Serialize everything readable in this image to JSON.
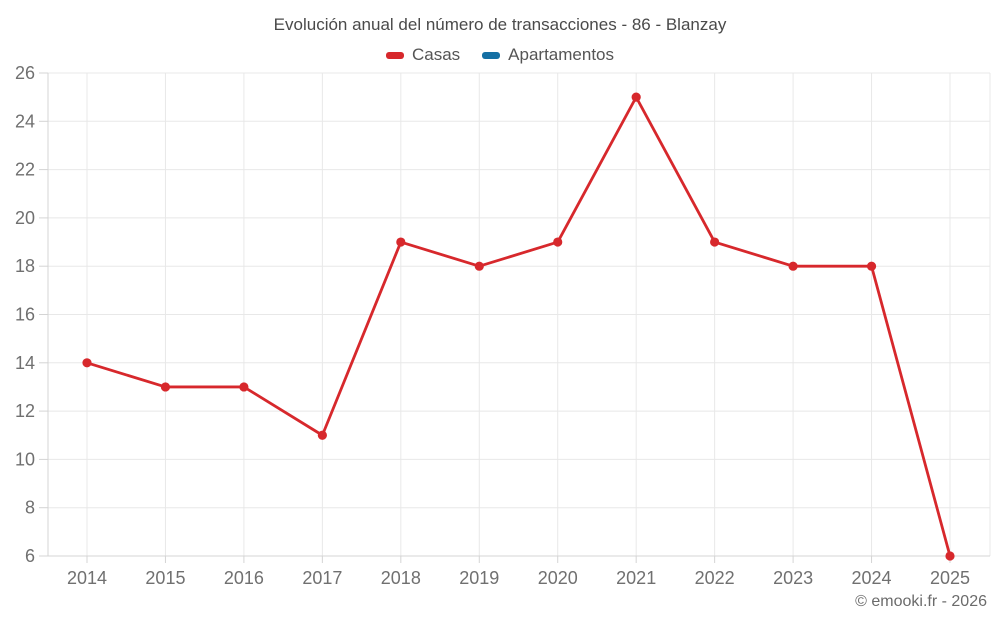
{
  "page": {
    "footer_credit": "© emooki.fr - 2026"
  },
  "chart_data": {
    "type": "line",
    "title": "Evolución anual del número de transacciones - 86 - Blanzay",
    "categories": [
      "2014",
      "2015",
      "2016",
      "2017",
      "2018",
      "2019",
      "2020",
      "2021",
      "2022",
      "2023",
      "2024",
      "2025"
    ],
    "series": [
      {
        "name": "Casas",
        "color": "#d7282c",
        "values": [
          14,
          13,
          13,
          11,
          19,
          18,
          19,
          25,
          19,
          18,
          18,
          6
        ]
      },
      {
        "name": "Apartamentos",
        "color": "#1470a4",
        "values": []
      }
    ],
    "xlabel": "",
    "ylabel": "",
    "ylim": [
      6,
      26
    ],
    "ytick_step": 2,
    "grid": true,
    "legend_position": "top",
    "marker_radius": 4.6,
    "line_width": 2.8,
    "colors": {
      "grid": "#e8e8e8",
      "axis": "#d4d4d4",
      "tick_label": "#707070",
      "title": "#4a4a4a",
      "background": "#ffffff"
    }
  }
}
